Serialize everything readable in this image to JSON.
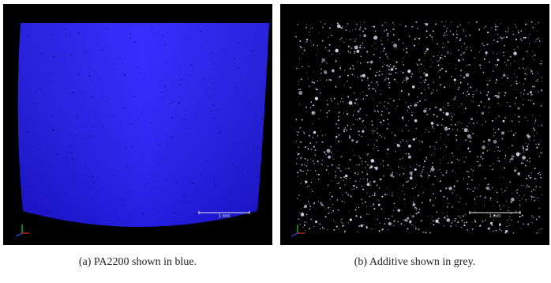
{
  "panels": [
    {
      "caption": "(a) PA2200 shown in blue.",
      "scale_bar_label": "1 mm",
      "material_color": "#1f17f2"
    },
    {
      "caption": "(b) Additive shown in grey.",
      "scale_bar_label": "1 mm",
      "material_color": "#d8d4ee"
    }
  ],
  "colors": {
    "background": "#000000",
    "axis_x": "#e03020",
    "axis_y": "#30c040",
    "axis_z": "#3050e0"
  }
}
